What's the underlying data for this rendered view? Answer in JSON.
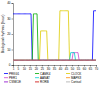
{
  "chart_data": {
    "type": "line",
    "ylabel": "Biological rhythms (hour)",
    "x": [
      1,
      2,
      3,
      4,
      5,
      6,
      7,
      8,
      9,
      10,
      11,
      12,
      13,
      14,
      15,
      16,
      17,
      18,
      19,
      20,
      21,
      22,
      23,
      24,
      25,
      26,
      27,
      28,
      29,
      30,
      31,
      32,
      33,
      34,
      35,
      36,
      37,
      38,
      39,
      40,
      41,
      42,
      43,
      44,
      45,
      46,
      47,
      48,
      49,
      50,
      51,
      52,
      53,
      54,
      55,
      56,
      57,
      58,
      59,
      60,
      61,
      62,
      63,
      64,
      65,
      66,
      67,
      68,
      69,
      70
    ],
    "series": [
      {
        "name": "PRKG1",
        "color": "#0000ff",
        "values": [
          33,
          33,
          33,
          33,
          33,
          33,
          33,
          33,
          33,
          33,
          33,
          33,
          33,
          33,
          33,
          33,
          3,
          3,
          3,
          3,
          3,
          3,
          3,
          3,
          3,
          3,
          3,
          3,
          3,
          3,
          3,
          3,
          3,
          3,
          3,
          3,
          3,
          3,
          3,
          3,
          3,
          3,
          3,
          3,
          3,
          3,
          3,
          3,
          3,
          3,
          3,
          3,
          3,
          3,
          3,
          3,
          3,
          3,
          3,
          3,
          3,
          3,
          3,
          3,
          3,
          3,
          3,
          35,
          35,
          35
        ]
      },
      {
        "name": "CAMK4",
        "color": "#00aa00",
        "values": [
          3,
          3,
          3,
          3,
          3,
          3,
          3,
          3,
          3,
          3,
          3,
          3,
          3,
          3,
          3,
          3,
          3,
          33,
          33,
          33,
          33,
          3,
          3,
          3,
          3,
          3,
          3,
          3,
          3,
          3,
          3,
          3,
          3,
          3,
          3,
          3,
          3,
          3,
          3,
          3,
          3,
          3,
          3,
          3,
          3,
          3,
          3,
          3,
          3,
          3,
          3,
          3,
          3,
          3,
          3,
          3,
          3,
          3,
          3,
          3,
          3,
          3,
          3,
          3,
          3,
          3,
          3,
          3,
          3,
          3
        ]
      },
      {
        "name": "CLOCK",
        "color": "#ddcc00",
        "values": [
          3,
          3,
          3,
          3,
          3,
          3,
          3,
          3,
          3,
          3,
          3,
          3,
          3,
          3,
          3,
          3,
          3,
          3,
          3,
          3,
          3,
          3,
          3,
          22,
          22,
          22,
          22,
          22,
          22,
          3,
          3,
          3,
          3,
          3,
          3,
          3,
          3,
          3,
          3,
          35,
          35,
          35,
          35,
          35,
          35,
          35,
          35,
          3,
          3,
          3,
          3,
          3,
          3,
          3,
          3,
          3,
          3,
          3,
          3,
          3,
          3,
          3,
          3,
          3,
          3,
          3,
          3,
          3,
          3,
          3
        ]
      },
      {
        "name": "PER1",
        "color": "#cc44cc",
        "values": [
          3,
          3,
          3,
          3,
          3,
          3,
          3,
          3,
          3,
          3,
          3,
          3,
          3,
          3,
          3,
          3,
          3,
          3,
          3,
          3,
          3,
          3,
          3,
          3,
          3,
          3,
          3,
          3,
          3,
          3,
          3,
          3,
          3,
          3,
          3,
          3,
          3,
          3,
          3,
          3,
          3,
          3,
          3,
          3,
          3,
          3,
          3,
          3,
          3,
          3,
          8,
          8,
          8,
          8,
          8,
          3,
          3,
          3,
          3,
          3,
          3,
          3,
          3,
          3,
          3,
          3,
          3,
          3,
          3,
          3
        ]
      },
      {
        "name": "AANAT",
        "color": "#00cccc",
        "values": [
          3,
          3,
          3,
          3,
          3,
          3,
          3,
          3,
          3,
          3,
          3,
          3,
          3,
          3,
          3,
          3,
          3,
          3,
          3,
          3,
          3,
          3,
          3,
          3,
          3,
          3,
          3,
          3,
          3,
          3,
          3,
          3,
          3,
          3,
          3,
          3,
          3,
          3,
          3,
          3,
          3,
          3,
          3,
          3,
          3,
          3,
          3,
          3,
          8,
          8,
          8,
          8,
          3,
          3,
          3,
          3,
          3,
          3,
          3,
          3,
          3,
          3,
          3,
          3,
          3,
          3,
          3,
          3,
          3,
          3
        ]
      },
      {
        "name": "MAPK8",
        "color": "#ff8800",
        "values": [
          3,
          3,
          3,
          3,
          3,
          3,
          3,
          3,
          3,
          3,
          3,
          3,
          3,
          3,
          3,
          3,
          3,
          3,
          3,
          3,
          3,
          3,
          3,
          3,
          3,
          3,
          3,
          3,
          3,
          3,
          3,
          3,
          3,
          3,
          3,
          3,
          3,
          3,
          3,
          3,
          3,
          3,
          3,
          3,
          3,
          3,
          3,
          3,
          3,
          3,
          3,
          3,
          3,
          3,
          3,
          3,
          3,
          3,
          3,
          3,
          3,
          3,
          3,
          3,
          3,
          3,
          3,
          3,
          3,
          3
        ]
      },
      {
        "name": "CSNK1E",
        "color": "#8800cc",
        "values": [
          3,
          3,
          3,
          3,
          3,
          3,
          3,
          3,
          3,
          3,
          3,
          3,
          3,
          3,
          3,
          3,
          3,
          3,
          3,
          3,
          3,
          3,
          3,
          3,
          3,
          3,
          3,
          3,
          3,
          3,
          3,
          3,
          3,
          3,
          3,
          3,
          3,
          3,
          3,
          3,
          3,
          3,
          3,
          3,
          3,
          3,
          3,
          3,
          3,
          3,
          3,
          3,
          3,
          3,
          3,
          3,
          3,
          3,
          3,
          3,
          3,
          3,
          3,
          3,
          3,
          3,
          3,
          3,
          3,
          3
        ]
      },
      {
        "name": "RORB",
        "color": "#cc0000",
        "values": [
          3,
          3,
          3,
          3,
          3,
          3,
          3,
          3,
          3,
          3,
          3,
          3,
          3,
          3,
          3,
          3,
          3,
          3,
          3,
          3,
          3,
          3,
          3,
          3,
          3,
          3,
          3,
          3,
          3,
          3,
          3,
          3,
          3,
          3,
          3,
          3,
          3,
          3,
          3,
          3,
          3,
          3,
          3,
          3,
          3,
          3,
          3,
          3,
          3,
          3,
          3,
          3,
          3,
          3,
          3,
          3,
          3,
          3,
          3,
          3,
          3,
          3,
          3,
          3,
          3,
          3,
          3,
          3,
          3,
          3
        ]
      },
      {
        "name": "Cortisol",
        "color": "#aaaaaa",
        "values": [
          3,
          3,
          3,
          3,
          3,
          3,
          3,
          3,
          3,
          3,
          3,
          3,
          3,
          3,
          3,
          3,
          3,
          3,
          3,
          3,
          3,
          3,
          3,
          3,
          3,
          3,
          3,
          3,
          3,
          3,
          3,
          3,
          3,
          3,
          3,
          3,
          3,
          3,
          3,
          3,
          3,
          3,
          3,
          3,
          3,
          3,
          3,
          3,
          3,
          3,
          3,
          3,
          3,
          3,
          3,
          3,
          3,
          3,
          3,
          3,
          3,
          3,
          3,
          3,
          3,
          3,
          3,
          3,
          3,
          3
        ]
      }
    ],
    "xlim": [
      1,
      70
    ],
    "ylim": [
      0,
      40
    ],
    "xticks": [
      1,
      5,
      10,
      15,
      20,
      25,
      30,
      35,
      40,
      45,
      50,
      55,
      60,
      65,
      70
    ],
    "yticks": [
      0,
      10,
      20,
      30,
      40
    ],
    "legend": "bottom"
  }
}
